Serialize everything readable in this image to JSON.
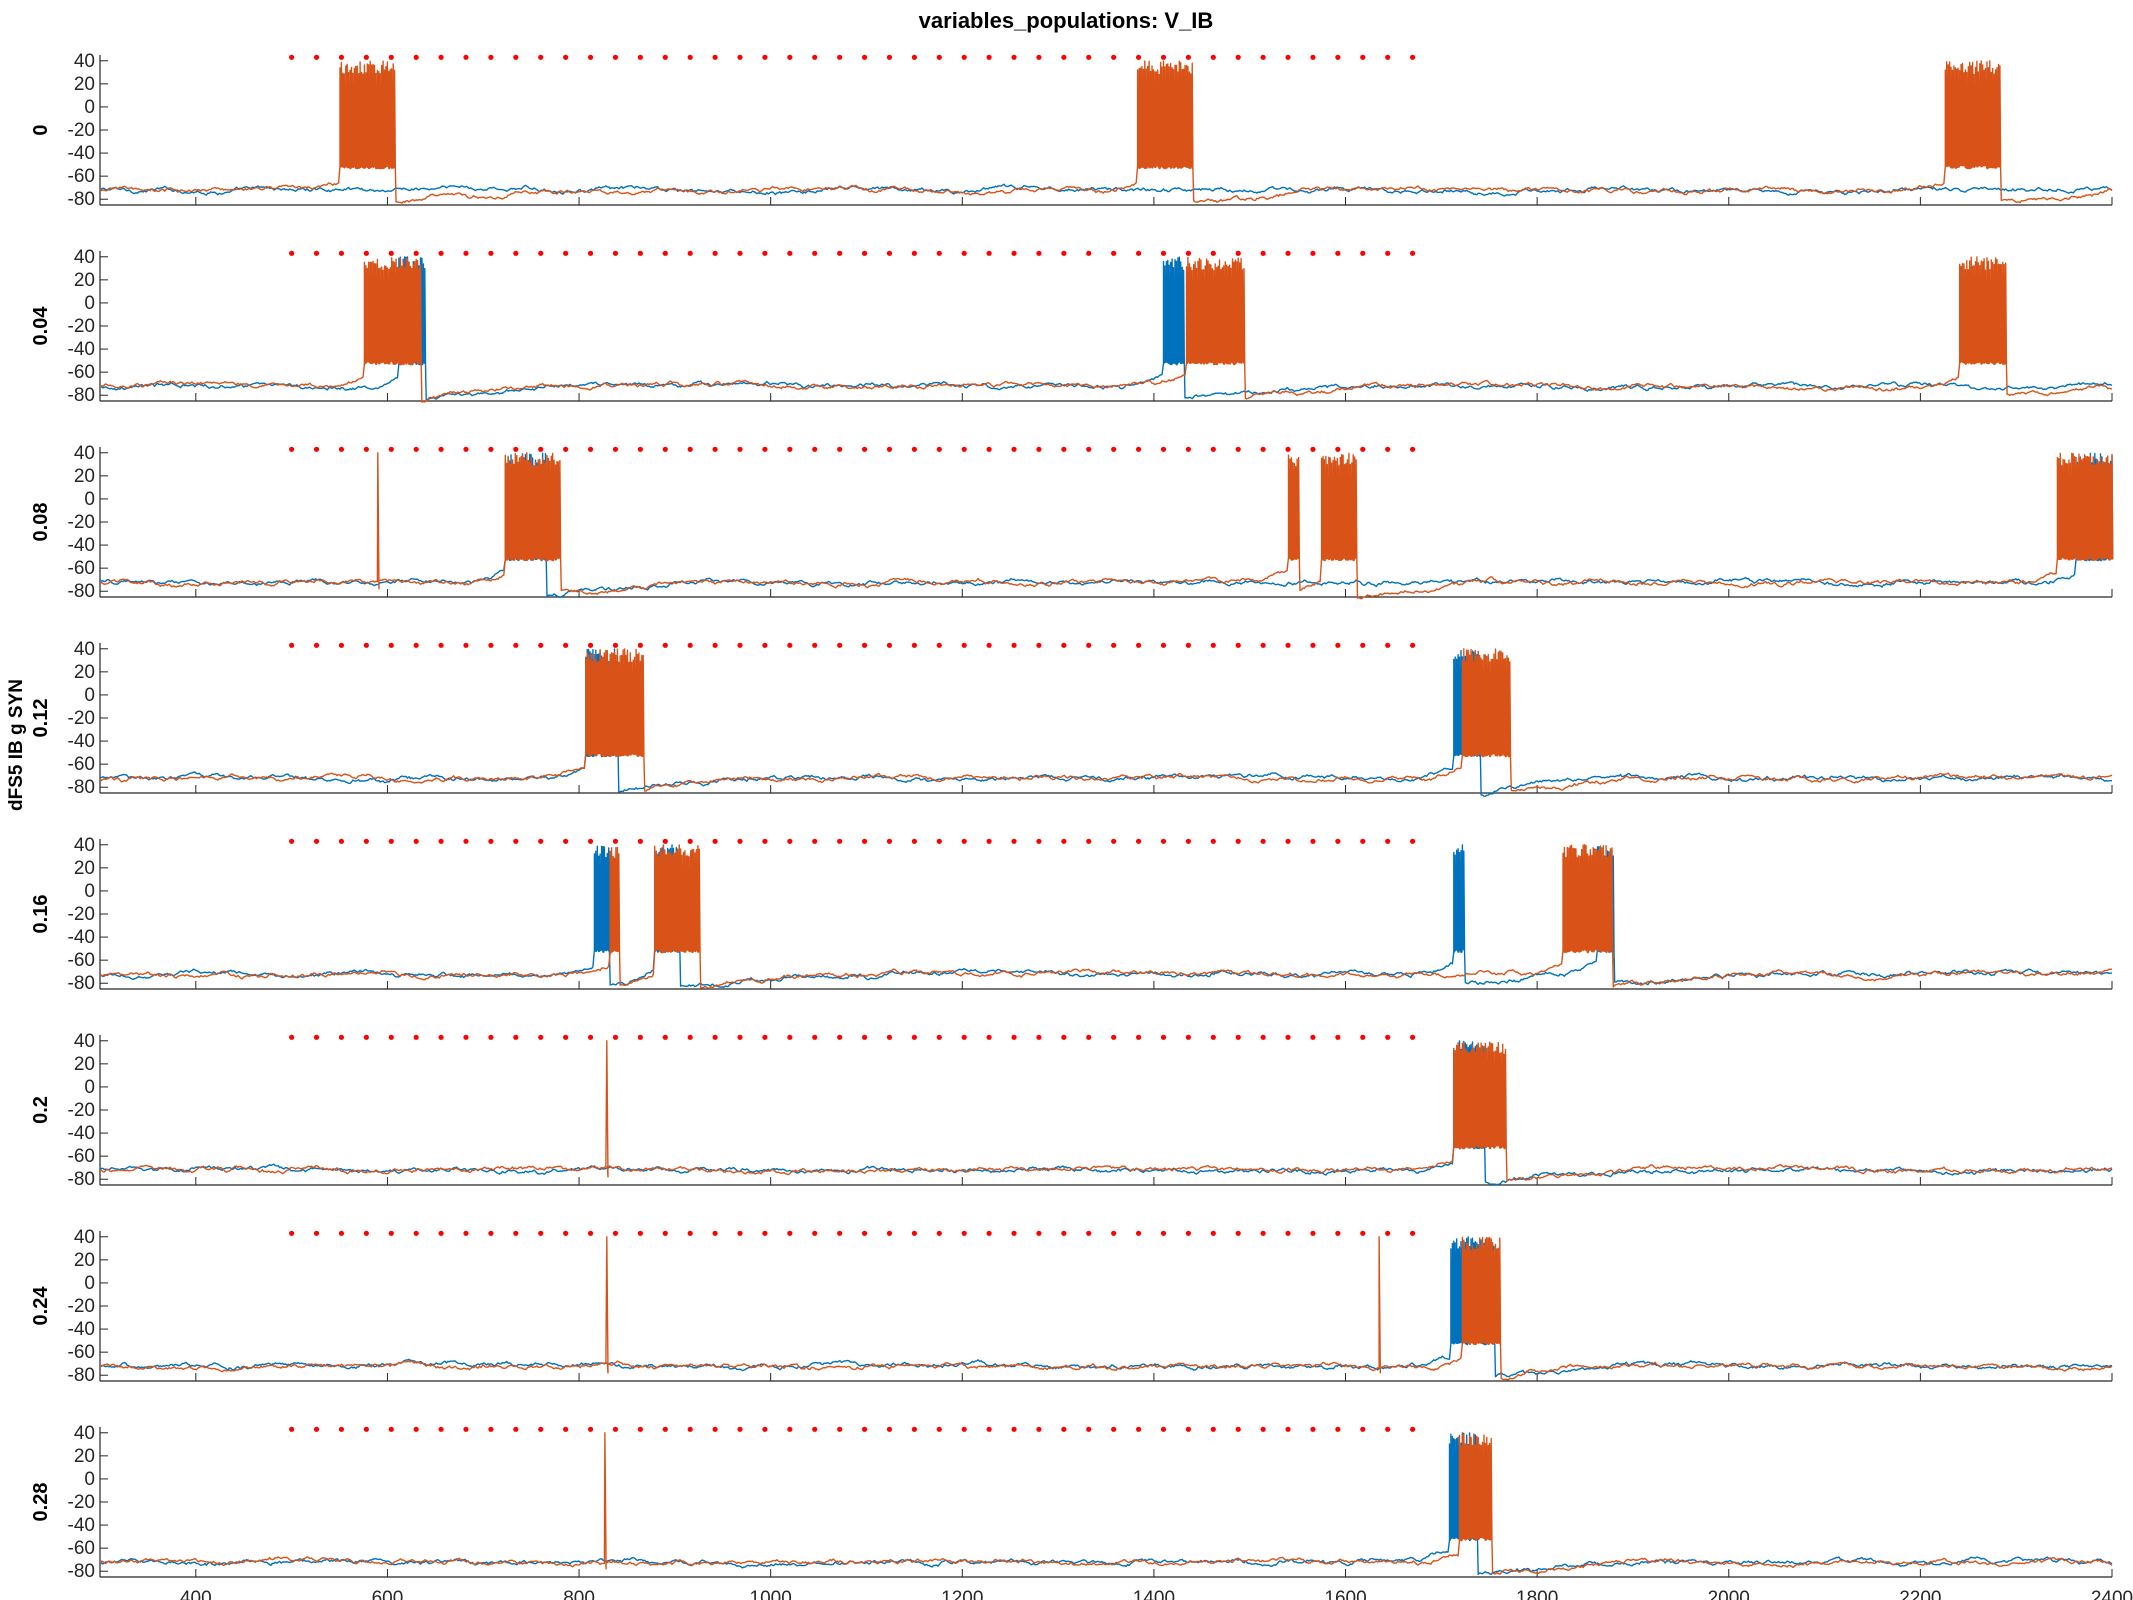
{
  "figure": {
    "title": "variables_populations: V_IB",
    "ylabel": "dFS5 IB g SYN"
  },
  "colors": {
    "series_1": "#0072BD",
    "series_2": "#D95319",
    "markers": "#FF0000",
    "axis": "#262626"
  },
  "chart_data": {
    "type": "line",
    "xlim": [
      300,
      2400
    ],
    "ylim": [
      -85,
      45
    ],
    "xticks": [
      400,
      600,
      800,
      1000,
      1200,
      1400,
      1600,
      1800,
      2000,
      2200,
      2400
    ],
    "yticks": [
      40,
      20,
      0,
      -20,
      -40,
      -60,
      -80
    ],
    "grid": false,
    "baseline_mV": -72,
    "spike_peak_mV": 40,
    "burst_plateau_mV": -52,
    "marker_row": {
      "y": 43,
      "x_start": 500,
      "x_end": 1690,
      "spacing": 26
    },
    "panels": [
      {
        "label": "0",
        "bursts": [
          {
            "series": 2,
            "start": 550,
            "end": 608
          },
          {
            "series": 2,
            "start": 1383,
            "end": 1440
          },
          {
            "series": 2,
            "start": 2226,
            "end": 2283
          }
        ],
        "single_spikes": []
      },
      {
        "label": "0.04",
        "bursts": [
          {
            "series": 2,
            "start": 576,
            "end": 635
          },
          {
            "series": 1,
            "start": 612,
            "end": 640
          },
          {
            "series": 1,
            "start": 1410,
            "end": 1432
          },
          {
            "series": 2,
            "start": 1434,
            "end": 1495
          },
          {
            "series": 2,
            "start": 2240,
            "end": 2290
          }
        ],
        "single_spikes": []
      },
      {
        "label": "0.08",
        "bursts": [
          {
            "series": 2,
            "start": 722,
            "end": 780
          },
          {
            "series": 1,
            "start": 722,
            "end": 765
          },
          {
            "series": 2,
            "start": 1540,
            "end": 1552
          },
          {
            "series": 2,
            "start": 1575,
            "end": 1612
          },
          {
            "series": 2,
            "start": 2342,
            "end": 2400
          },
          {
            "series": 1,
            "start": 2362,
            "end": 2400
          }
        ],
        "single_spikes": [
          {
            "series": 2,
            "x": 590
          }
        ]
      },
      {
        "label": "0.12",
        "bursts": [
          {
            "series": 2,
            "start": 807,
            "end": 868
          },
          {
            "series": 1,
            "start": 807,
            "end": 840
          },
          {
            "series": 1,
            "start": 1712,
            "end": 1740
          },
          {
            "series": 2,
            "start": 1722,
            "end": 1772
          }
        ],
        "single_spikes": []
      },
      {
        "label": "0.16",
        "bursts": [
          {
            "series": 1,
            "start": 815,
            "end": 832
          },
          {
            "series": 2,
            "start": 832,
            "end": 842
          },
          {
            "series": 2,
            "start": 878,
            "end": 926
          },
          {
            "series": 1,
            "start": 878,
            "end": 905
          },
          {
            "series": 1,
            "start": 1712,
            "end": 1724
          },
          {
            "series": 2,
            "start": 1827,
            "end": 1878
          },
          {
            "series": 1,
            "start": 1862,
            "end": 1880
          }
        ],
        "single_spikes": []
      },
      {
        "label": "0.2",
        "bursts": [
          {
            "series": 2,
            "start": 1712,
            "end": 1768
          },
          {
            "series": 1,
            "start": 1712,
            "end": 1745
          }
        ],
        "single_spikes": [
          {
            "series": 2,
            "x": 829
          }
        ]
      },
      {
        "label": "0.24",
        "bursts": [
          {
            "series": 1,
            "start": 1710,
            "end": 1755
          },
          {
            "series": 2,
            "start": 1722,
            "end": 1762
          }
        ],
        "single_spikes": [
          {
            "series": 2,
            "x": 829
          },
          {
            "series": 2,
            "x": 1635
          }
        ]
      },
      {
        "label": "0.28",
        "bursts": [
          {
            "series": 1,
            "start": 1708,
            "end": 1738
          },
          {
            "series": 2,
            "start": 1718,
            "end": 1752
          }
        ],
        "single_spikes": [
          {
            "series": 2,
            "x": 827
          }
        ]
      }
    ]
  }
}
